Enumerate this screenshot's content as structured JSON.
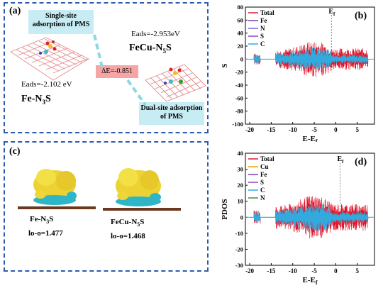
{
  "panel_a": {
    "label": "(a)",
    "single_site": "Single-site adsorption of PMS",
    "dual_site": "Dual-site adsorption of PMS",
    "eads1": "Eads=-2.953eV",
    "eads2": "Eads=-2.102 eV",
    "struct1": "FeCu-N",
    "struct1_sub": "5",
    "struct1_tail": "S",
    "struct2": "Fe-N",
    "struct2_sub": "3",
    "struct2_tail": "S",
    "delta": "ΔE=-0.851"
  },
  "panel_c": {
    "label": "(c)",
    "left_name": "Fe-N",
    "left_sub": "3",
    "left_tail": "S",
    "left_lo": "lo-o=1.477",
    "right_name": "FeCu-N",
    "right_sub": "5",
    "right_tail": "S",
    "right_lo": "lo-o=1.468"
  },
  "chart_data": [
    {
      "panel": "(b)",
      "type": "line",
      "ylabel": "S",
      "xlabel": "E-E",
      "xlabel_sub": "f",
      "annotation": "E",
      "annotation_sub": "f",
      "xlim": [
        -21,
        9
      ],
      "ylim": [
        -100,
        80
      ],
      "xticks": [
        -20,
        -15,
        -10,
        -5,
        0,
        5
      ],
      "yticks": [
        80,
        60,
        40,
        20,
        0,
        -20,
        -40,
        -60,
        -80,
        -100
      ],
      "legend": [
        "Total",
        "Fe",
        "N",
        "S",
        "C"
      ],
      "colors": {
        "Total": "#e0182d",
        "Fe": "#7a3d9c",
        "N": "#6a6ae0",
        "S": "#8c44c8",
        "C": "#33aadd"
      },
      "fermi": -1.0
    },
    {
      "panel": "(d)",
      "type": "line",
      "ylabel": "PDOS",
      "xlabel": "E-E",
      "xlabel_sub": "f",
      "annotation": "E",
      "annotation_sub": "f",
      "xlim": [
        -21,
        9
      ],
      "ylim": [
        -30,
        40
      ],
      "xticks": [
        -20,
        -15,
        -10,
        -5,
        0,
        5
      ],
      "yticks": [
        40,
        30,
        20,
        10,
        0,
        -10,
        -20,
        -30
      ],
      "legend": [
        "Total",
        "Cu",
        "Fe",
        "S",
        "C",
        "N"
      ],
      "colors": {
        "Total": "#e0182d",
        "Cu": "#e8a400",
        "Fe": "#7a3d9c",
        "S": "#8c44c8",
        "C": "#33aadd",
        "N": "#2ca02c"
      },
      "fermi": 1.0
    }
  ]
}
